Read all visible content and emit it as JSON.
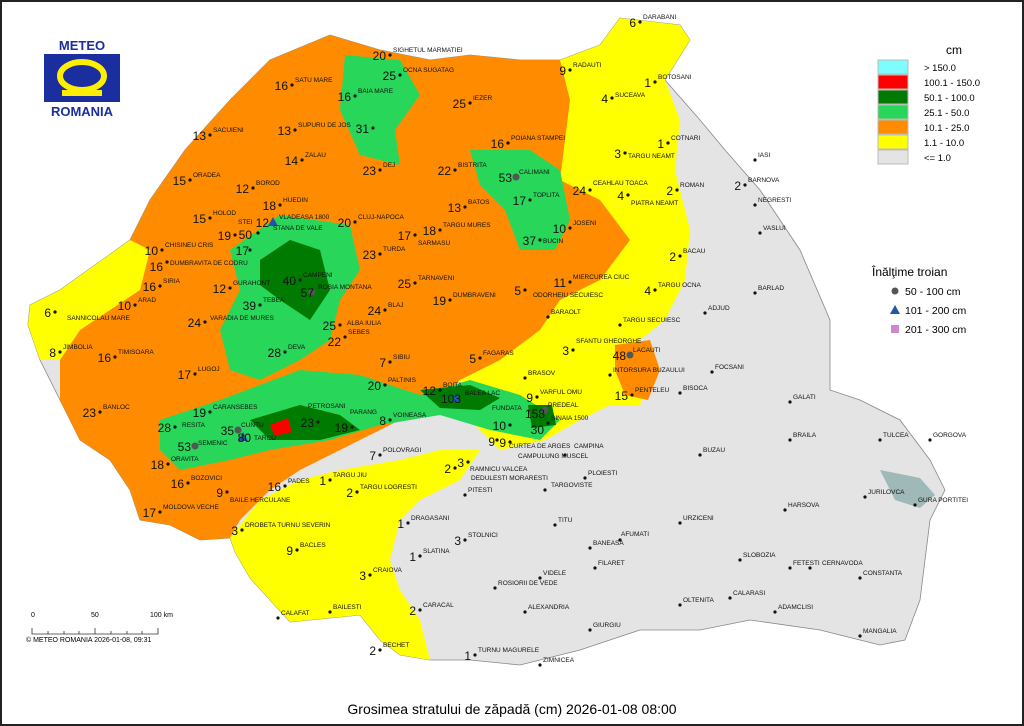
{
  "logo": {
    "top": "METEO",
    "bottom": "ROMANIA"
  },
  "title": "Grosimea stratului de zăpadă (cm)  2026-01-08 08:00",
  "copyright": "© METEO ROMANIA 2026-01-08, 09:31",
  "scale": {
    "labels": [
      "0",
      "50",
      "100 km"
    ]
  },
  "legend": {
    "unit": "cm",
    "classes": [
      {
        "label": "> 150.0",
        "color": "#7ffcff"
      },
      {
        "label": "100.1 - 150.0",
        "color": "#ff0000"
      },
      {
        "label": "50.1 - 100.0",
        "color": "#007a00"
      },
      {
        "label": "25.1 - 50.0",
        "color": "#28d65a"
      },
      {
        "label": "10.1 - 25.0",
        "color": "#ff8c00"
      },
      {
        "label": "1.1 - 10.0",
        "color": "#ffff00"
      },
      {
        "label": "<= 1.0",
        "color": "#e4e4e4"
      }
    ]
  },
  "drift_legend": {
    "title": "Înălţime troian",
    "items": [
      {
        "label": "50 - 100 cm",
        "symbol": "circle",
        "color": "#555555"
      },
      {
        "label": "101 - 200 cm",
        "symbol": "triangle",
        "color": "#2255aa"
      },
      {
        "label": "201 - 300 cm",
        "symbol": "square",
        "color": "#cc88cc"
      }
    ]
  },
  "stations": [
    {
      "name": "DARABANI",
      "value": "6"
    },
    {
      "name": "RADAUTI",
      "value": "9"
    },
    {
      "name": "BOTOSANI",
      "value": "1"
    },
    {
      "name": "SUCEAVA",
      "value": "4"
    },
    {
      "name": "COTNARI",
      "value": "1"
    },
    {
      "name": "IASI",
      "value": ""
    },
    {
      "name": "TARGU NEAMT",
      "value": "3"
    },
    {
      "name": "BARNOVA",
      "value": "2"
    },
    {
      "name": "PIATRA NEAMT",
      "value": "4"
    },
    {
      "name": "ROMAN",
      "value": "2"
    },
    {
      "name": "NEGRESTI",
      "value": ""
    },
    {
      "name": "VASLUI",
      "value": ""
    },
    {
      "name": "BACAU",
      "value": "2"
    },
    {
      "name": "TARGU OCNA",
      "value": "4"
    },
    {
      "name": "BARLAD",
      "value": ""
    },
    {
      "name": "ADJUD",
      "value": ""
    },
    {
      "name": "FOCSANI",
      "value": ""
    },
    {
      "name": "GALATI",
      "value": ""
    },
    {
      "name": "TULCEA",
      "value": ""
    },
    {
      "name": "GORGOVA",
      "value": ""
    },
    {
      "name": "BRAILA",
      "value": ""
    },
    {
      "name": "JURILOVCA",
      "value": ""
    },
    {
      "name": "GURA PORTITEI",
      "value": ""
    },
    {
      "name": "BUZAU",
      "value": ""
    },
    {
      "name": "BISOCA",
      "value": ""
    },
    {
      "name": "PENTELEU",
      "value": "15"
    },
    {
      "name": "LACAUTI",
      "value": "48"
    },
    {
      "name": "INTORSURA BUZAULUI",
      "value": ""
    },
    {
      "name": "TARGU SECUIESC",
      "value": ""
    },
    {
      "name": "SFANTU GHEORGHE",
      "value": "3"
    },
    {
      "name": "BARAOLT",
      "value": ""
    },
    {
      "name": "MIERCUREA CIUC",
      "value": "11"
    },
    {
      "name": "ODORHEIU SECUIESC",
      "value": "5"
    },
    {
      "name": "JOSENI",
      "value": "10"
    },
    {
      "name": "BUCIN",
      "value": "37"
    },
    {
      "name": "TOPLITA",
      "value": "17"
    },
    {
      "name": "CEAHLAU TOACA",
      "value": "24"
    },
    {
      "name": "CALIMANI",
      "value": "53"
    },
    {
      "name": "POIANA STAMPEI",
      "value": "16"
    },
    {
      "name": "BISTRITA",
      "value": "22"
    },
    {
      "name": "IEZER",
      "value": "25"
    },
    {
      "name": "BATOS",
      "value": "13"
    },
    {
      "name": "TARGU MURES",
      "value": "18"
    },
    {
      "name": "SARMASU",
      "value": "17"
    },
    {
      "name": "DEJ",
      "value": "23"
    },
    {
      "name": "OCNA SUGATAG",
      "value": "25"
    },
    {
      "name": "SIGHETUL MARMATIEI",
      "value": "20"
    },
    {
      "name": "BAIA MARE",
      "value": "16"
    },
    {
      "name": "SATU MARE",
      "value": "16"
    },
    {
      "name": "SUPURU DE JOS",
      "value": "13"
    },
    {
      "name": "",
      "value": "31"
    },
    {
      "name": "ZALAU",
      "value": "14"
    },
    {
      "name": "SACUIENI",
      "value": "13"
    },
    {
      "name": "ORADEA",
      "value": "15"
    },
    {
      "name": "BOROD",
      "value": "12"
    },
    {
      "name": "HUEDIN",
      "value": "18"
    },
    {
      "name": "VLADEASA 1800",
      "value": "12"
    },
    {
      "name": "CLUJ-NAPOCA",
      "value": "20"
    },
    {
      "name": "HOLOD",
      "value": "15"
    },
    {
      "name": "STEI",
      "value": "19"
    },
    {
      "name": "STANA DE VALE",
      "value": "50"
    },
    {
      "name": "CHISINEU CRIS",
      "value": "10"
    },
    {
      "name": "DUMBRAVITA DE CODRU",
      "value": "16"
    },
    {
      "name": "",
      "value": "17"
    },
    {
      "name": "SIRIA",
      "value": "16"
    },
    {
      "name": "ARAD",
      "value": "10"
    },
    {
      "name": "SANNICOLAU MARE",
      "value": "6"
    },
    {
      "name": "GURAHONT",
      "value": "12"
    },
    {
      "name": "CAMPENI",
      "value": "40"
    },
    {
      "name": "ROSIA MONTANA",
      "value": "57"
    },
    {
      "name": "TURDA",
      "value": "23"
    },
    {
      "name": "TARNAVENI",
      "value": "25"
    },
    {
      "name": "DUMBRAVENI",
      "value": "19"
    },
    {
      "name": "BLAJ",
      "value": "24"
    },
    {
      "name": "ALBA IULIA",
      "value": "25"
    },
    {
      "name": "SEBES",
      "value": "22"
    },
    {
      "name": "TEBEA",
      "value": "39"
    },
    {
      "name": "VARADIA DE MURES",
      "value": "24"
    },
    {
      "name": "JIMBOLIA",
      "value": "8"
    },
    {
      "name": "TIMISOARA",
      "value": "16"
    },
    {
      "name": "LUGOJ",
      "value": "17"
    },
    {
      "name": "DEVA",
      "value": "28"
    },
    {
      "name": "SIBIU",
      "value": "7"
    },
    {
      "name": "PALTINIS",
      "value": "20"
    },
    {
      "name": "FAGARAS",
      "value": "5"
    },
    {
      "name": "BRASOV",
      "value": ""
    },
    {
      "name": "BOITA",
      "value": "12"
    },
    {
      "name": "BALEA LAC",
      "value": "103"
    },
    {
      "name": "VARFUL OMU",
      "value": "9"
    },
    {
      "name": "PREDEAL",
      "value": "158"
    },
    {
      "name": "SINAIA 1500",
      "value": "30"
    },
    {
      "name": "FUNDATA",
      "value": "10"
    },
    {
      "name": "CURTEA DE ARGES",
      "value": "9"
    },
    {
      "name": "CAMPULUNG MUSCEL",
      "value": "9"
    },
    {
      "name": "RAMNICU VALCEA",
      "value": "2"
    },
    {
      "name": "VOINEASA",
      "value": "8"
    },
    {
      "name": "PARANG",
      "value": "19"
    },
    {
      "name": "PETROSANI",
      "value": "23"
    },
    {
      "name": "CARANSEBES",
      "value": "19"
    },
    {
      "name": "BANLOC",
      "value": "23"
    },
    {
      "name": "RESITA",
      "value": "28"
    },
    {
      "name": "CUNTU",
      "value": "35"
    },
    {
      "name": "TARCU",
      "value": "80"
    },
    {
      "name": "SEMENIC",
      "value": "53"
    },
    {
      "name": "ORAVITA",
      "value": "18"
    },
    {
      "name": "BOZOVICI",
      "value": "16"
    },
    {
      "name": "BAILE HERCULANE",
      "value": "9"
    },
    {
      "name": "MOLDOVA VECHE",
      "value": "17"
    },
    {
      "name": "PADES",
      "value": "16"
    },
    {
      "name": "TARGU JIU",
      "value": "1"
    },
    {
      "name": "POLOVRAGI",
      "value": "7"
    },
    {
      "name": "TARGU LOGRESTI",
      "value": "2"
    },
    {
      "name": "DEDULESTI MORARESTI",
      "value": "3"
    },
    {
      "name": "DROBETA TURNU SEVERIN",
      "value": "3"
    },
    {
      "name": "BACLES",
      "value": "9"
    },
    {
      "name": "DRAGASANI",
      "value": "1"
    },
    {
      "name": "STOLNICI",
      "value": "3"
    },
    {
      "name": "SLATINA",
      "value": "1"
    },
    {
      "name": "CRAIOVA",
      "value": "3"
    },
    {
      "name": "CALAFAT",
      "value": ""
    },
    {
      "name": "BAILESTI",
      "value": ""
    },
    {
      "name": "CARACAL",
      "value": "2"
    },
    {
      "name": "BECHET",
      "value": "2"
    },
    {
      "name": "TURNU MAGURELE",
      "value": "1"
    },
    {
      "name": "ROSIORII DE VEDE",
      "value": ""
    },
    {
      "name": "ALEXANDRIA",
      "value": ""
    },
    {
      "name": "ZIMNICEA",
      "value": ""
    },
    {
      "name": "PITESTI",
      "value": ""
    },
    {
      "name": "TARGOVISTE",
      "value": ""
    },
    {
      "name": "CAMPINA",
      "value": ""
    },
    {
      "name": "PLOIESTI",
      "value": ""
    },
    {
      "name": "TITU",
      "value": ""
    },
    {
      "name": "BANEASA",
      "value": ""
    },
    {
      "name": "AFUMATI",
      "value": ""
    },
    {
      "name": "FILARET",
      "value": ""
    },
    {
      "name": "VIDELE",
      "value": ""
    },
    {
      "name": "GIURGIU",
      "value": ""
    },
    {
      "name": "OLTENITA",
      "value": ""
    },
    {
      "name": "URZICENI",
      "value": ""
    },
    {
      "name": "SLOBOZIA",
      "value": ""
    },
    {
      "name": "FETESTI",
      "value": ""
    },
    {
      "name": "CERNAVODA",
      "value": ""
    },
    {
      "name": "CONSTANTA",
      "value": ""
    },
    {
      "name": "CALARASI",
      "value": ""
    },
    {
      "name": "ADAMCLISI",
      "value": ""
    },
    {
      "name": "MANGALIA",
      "value": ""
    },
    {
      "name": "HARSOVA",
      "value": ""
    }
  ]
}
